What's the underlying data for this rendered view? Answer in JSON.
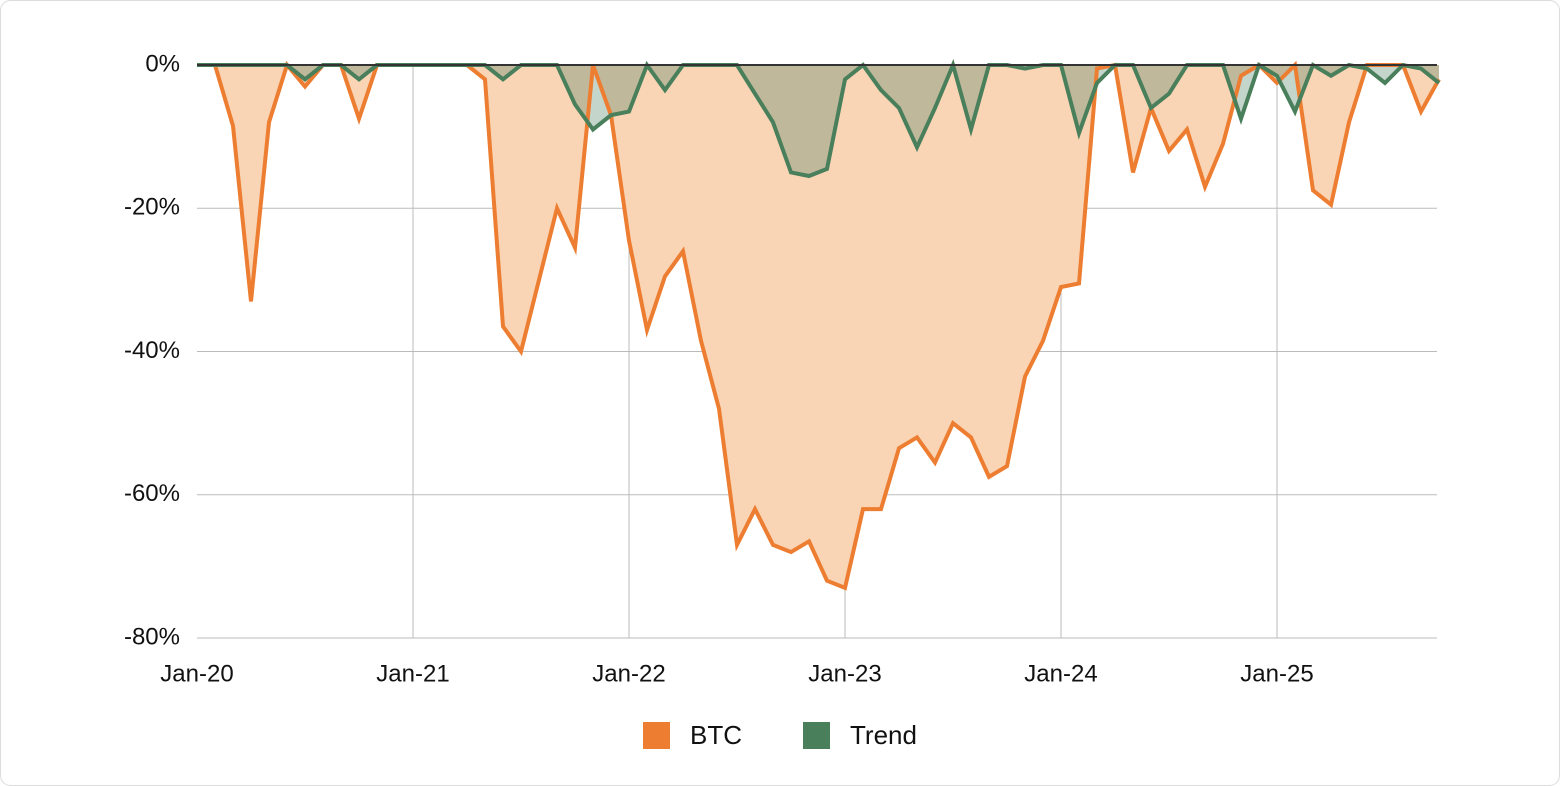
{
  "chart_data": {
    "type": "area",
    "categories": [
      "Jan-20",
      null,
      null,
      null,
      null,
      null,
      null,
      null,
      null,
      null,
      null,
      null,
      "Jan-21",
      null,
      null,
      null,
      null,
      null,
      null,
      null,
      null,
      null,
      null,
      null,
      "Jan-22",
      null,
      null,
      null,
      null,
      null,
      null,
      null,
      null,
      null,
      null,
      null,
      "Jan-23",
      null,
      null,
      null,
      null,
      null,
      null,
      null,
      null,
      null,
      null,
      null,
      "Jan-24",
      null,
      null,
      null,
      null,
      null,
      null,
      null,
      null,
      null,
      null,
      null,
      "Jan-25",
      null,
      null,
      null,
      null,
      null,
      null,
      null,
      null,
      null
    ],
    "series": [
      {
        "name": "BTC",
        "color": "#ed7d31",
        "fill": "#f9d5b5",
        "values": [
          0,
          0,
          -8.5,
          -33,
          -8,
          0,
          -3,
          0,
          0,
          -7.5,
          0,
          0,
          0,
          0,
          0,
          0,
          -2,
          -36.5,
          -40,
          -30,
          -20,
          -25.5,
          0,
          -7,
          -24.5,
          -37,
          -29.5,
          -26,
          -38.5,
          -48,
          -67,
          -62,
          -67,
          -68,
          -66.5,
          -72,
          -73,
          -62,
          -62,
          -53.5,
          -52,
          -55.5,
          -50,
          -52,
          -57.5,
          -56,
          -43.5,
          -38.5,
          -31,
          -30.5,
          -0.5,
          0,
          -15,
          -6,
          -12,
          -9,
          -17,
          -11,
          -1.5,
          0,
          -2.5,
          0,
          -17.5,
          -19.5,
          -8,
          0,
          0,
          0,
          -6.5,
          -2
        ]
      },
      {
        "name": "Trend",
        "color": "#4a7f5c",
        "fill": "rgba(70,125,95,0.32)",
        "values": [
          0,
          0,
          0,
          0,
          0,
          0,
          -2,
          0,
          0,
          -2,
          0,
          0,
          0,
          0,
          0,
          0,
          0,
          -2,
          0,
          0,
          0,
          -5.5,
          -9,
          -7,
          -6.5,
          0,
          -3.5,
          0,
          0,
          0,
          0,
          -4,
          -8,
          -15,
          -15.5,
          -14.5,
          -2,
          0,
          -3.5,
          -6,
          -11.5,
          -6,
          0,
          -9,
          0,
          0,
          -0.5,
          0,
          0,
          -9.5,
          -2.5,
          0,
          0,
          -6,
          -4,
          0,
          0,
          0,
          -7.5,
          0,
          -1.5,
          -6.5,
          0,
          -1.5,
          0,
          -0.5,
          -2.5,
          0,
          -0.5,
          -2.5
        ]
      }
    ],
    "ylim": [
      -80,
      0
    ],
    "yticks": [
      {
        "value": 0,
        "label": "0%"
      },
      {
        "value": -20,
        "label": "-20%"
      },
      {
        "value": -40,
        "label": "-40%"
      },
      {
        "value": -60,
        "label": "-60%"
      },
      {
        "value": -80,
        "label": "-80%"
      }
    ],
    "grid": true,
    "legend": "bottom"
  }
}
